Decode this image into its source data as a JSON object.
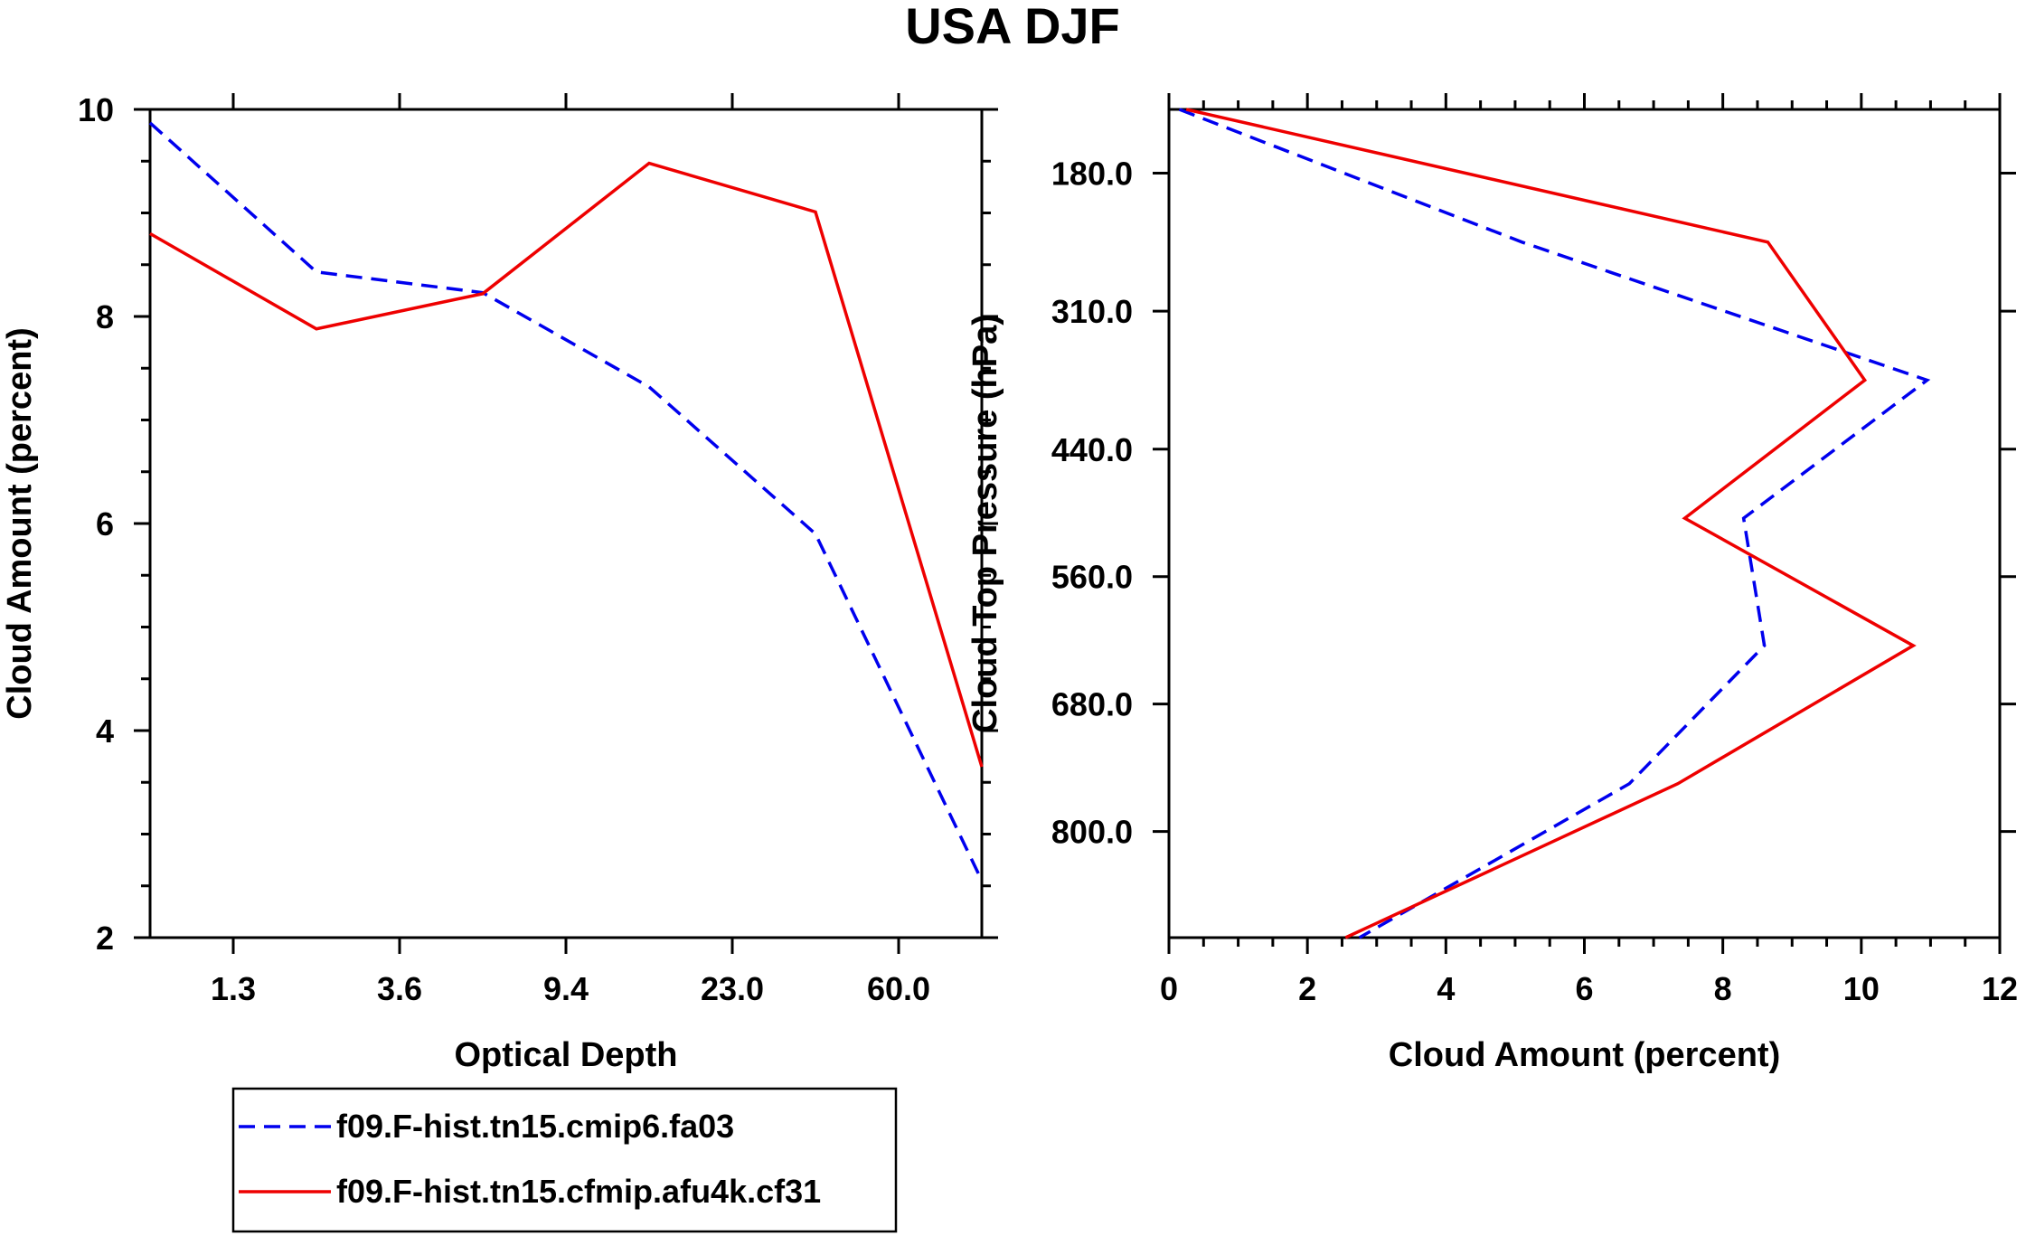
{
  "title": "USA DJF",
  "colors": {
    "series_1": "#0000ee",
    "series_2": "#ee0000",
    "axis": "#000000"
  },
  "legend": {
    "entries": [
      {
        "name": "f09.F-hist.tn15.cmip6.fa03",
        "style": "dashed",
        "color": "#0000ee"
      },
      {
        "name": "f09.F-hist.tn15.cfmip.afu4k.cf31",
        "style": "solid",
        "color": "#ee0000"
      }
    ]
  },
  "chart_data": [
    {
      "type": "line",
      "title": "",
      "xlabel": "Optical Depth",
      "ylabel": "Cloud Amount (percent)",
      "xlim": [
        0,
        5
      ],
      "ylim": [
        2,
        10
      ],
      "x_ticks": [
        0.5,
        1.5,
        2.5,
        3.5,
        4.5
      ],
      "x_tick_labels": [
        "1.3",
        "3.6",
        "9.4",
        "23.0",
        "60.0"
      ],
      "y_ticks": [
        2,
        4,
        6,
        8,
        10
      ],
      "y_tick_labels": [
        "2",
        "4",
        "6",
        "8",
        "10"
      ],
      "x": [
        0,
        1,
        2,
        3,
        4,
        5
      ],
      "series": [
        {
          "name": "f09.F-hist.tn15.cmip6.fa03",
          "style": "dashed",
          "values": [
            9.87,
            8.43,
            8.23,
            7.32,
            5.9,
            2.55
          ]
        },
        {
          "name": "f09.F-hist.tn15.cfmip.afu4k.cf31",
          "style": "solid",
          "values": [
            8.8,
            7.88,
            8.22,
            9.48,
            9.01,
            3.65
          ]
        }
      ]
    },
    {
      "type": "line",
      "title": "",
      "xlabel": "Cloud Amount (percent)",
      "ylabel": "Cloud Top Pressure (hPa)",
      "xlim": [
        0,
        12
      ],
      "ylim": [
        120,
        900
      ],
      "y_reversed": true,
      "x_ticks": [
        0,
        2,
        4,
        6,
        8,
        10,
        12
      ],
      "x_tick_labels": [
        "0",
        "2",
        "4",
        "6",
        "8",
        "10",
        "12"
      ],
      "y_ticks": [
        180,
        310,
        440,
        560,
        680,
        800
      ],
      "y_tick_labels": [
        "180.0",
        "310.0",
        "440.0",
        "560.0",
        "680.0",
        "800.0"
      ],
      "y": [
        120,
        245,
        375,
        505,
        625,
        755,
        900
      ],
      "series": [
        {
          "name": "f09.F-hist.tn15.cmip6.fa03",
          "style": "dashed",
          "values": [
            0.15,
            5.1,
            10.95,
            8.3,
            8.6,
            6.65,
            2.75
          ]
        },
        {
          "name": "f09.F-hist.tn15.cfmip.afu4k.cf31",
          "style": "solid",
          "values": [
            0.25,
            8.65,
            10.05,
            7.45,
            10.75,
            7.35,
            2.55
          ]
        }
      ]
    }
  ]
}
